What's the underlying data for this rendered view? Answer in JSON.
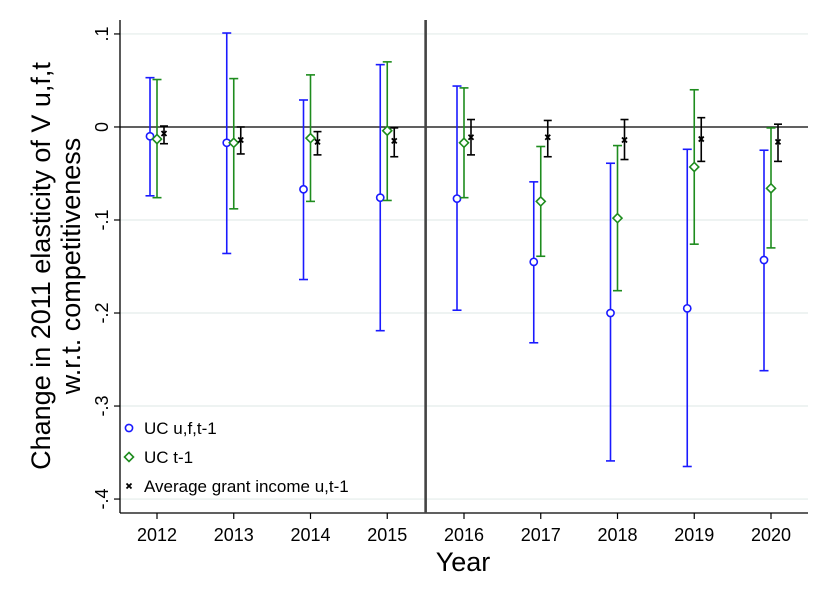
{
  "chart_data": {
    "type": "scatter",
    "subtype": "coefficient-plot-with-error-bars",
    "title": "",
    "xlabel": "Year",
    "ylabel_lines": [
      "Change in 2011 elasticity of V u,f,t",
      "w.r.t. competitiveness"
    ],
    "categories": [
      "2012",
      "2013",
      "2014",
      "2015",
      "2016",
      "2017",
      "2018",
      "2019",
      "2020"
    ],
    "ylim": [
      -0.415,
      0.115
    ],
    "yticks": [
      0.1,
      0,
      -0.1,
      -0.2,
      -0.3,
      -0.4
    ],
    "ytick_labels": [
      ".1",
      "0",
      "-.1",
      "-.2",
      "-.3",
      "-.4"
    ],
    "grid": true,
    "zero_line": true,
    "vertical_divider_between": [
      "2015",
      "2016"
    ],
    "legend_position": "bottom-left",
    "series": [
      {
        "name": "UC u,f,t-1",
        "marker": "circle",
        "color": "#1a1aff",
        "values": [
          -0.01,
          -0.017,
          -0.067,
          -0.076,
          -0.077,
          -0.145,
          -0.2,
          -0.195,
          -0.143
        ],
        "ci_low": [
          -0.074,
          -0.136,
          -0.164,
          -0.219,
          -0.197,
          -0.232,
          -0.359,
          -0.365,
          -0.262
        ],
        "ci_high": [
          0.053,
          0.101,
          0.029,
          0.067,
          0.044,
          -0.059,
          -0.039,
          -0.024,
          -0.025
        ]
      },
      {
        "name": "UC t-1",
        "marker": "diamond",
        "color": "#1e8c1e",
        "values": [
          -0.013,
          -0.017,
          -0.012,
          -0.004,
          -0.017,
          -0.08,
          -0.098,
          -0.043,
          -0.066
        ],
        "ci_low": [
          -0.076,
          -0.088,
          -0.08,
          -0.079,
          -0.076,
          -0.139,
          -0.176,
          -0.126,
          -0.13
        ],
        "ci_high": [
          0.051,
          0.052,
          0.056,
          0.07,
          0.042,
          -0.021,
          -0.02,
          0.04,
          -0.001
        ]
      },
      {
        "name": "Average grant income u,t-1",
        "marker": "x",
        "color": "#000000",
        "values": [
          -0.007,
          -0.014,
          -0.016,
          -0.015,
          -0.011,
          -0.011,
          -0.014,
          -0.013,
          -0.016
        ],
        "ci_low": [
          -0.018,
          -0.029,
          -0.03,
          -0.032,
          -0.03,
          -0.032,
          -0.035,
          -0.037,
          -0.037
        ],
        "ci_high": [
          0.001,
          0.0,
          -0.005,
          -0.001,
          0.008,
          0.007,
          0.008,
          0.01,
          0.003
        ]
      }
    ]
  }
}
